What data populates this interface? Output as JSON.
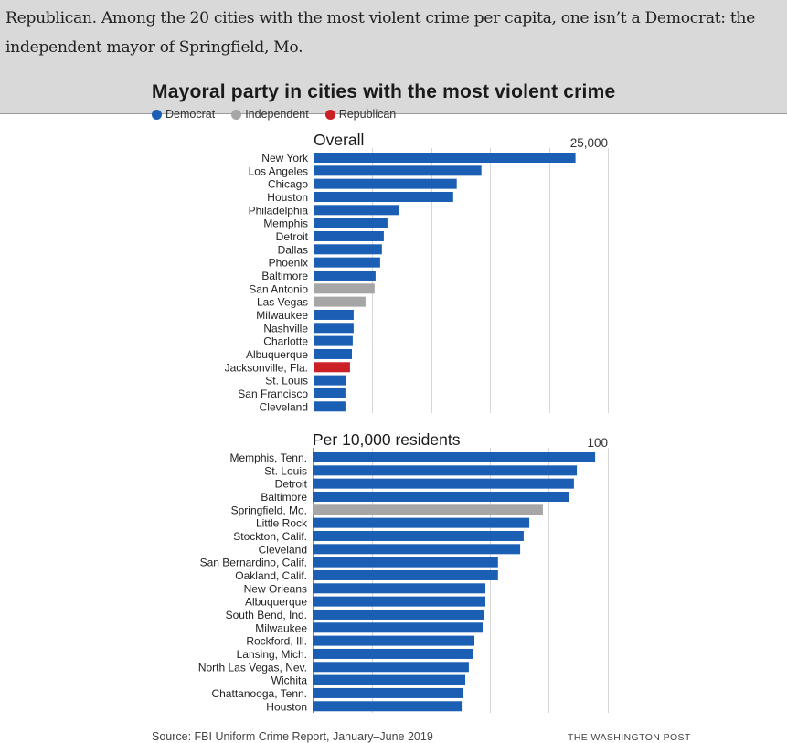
{
  "article": {
    "lines": [
      "Republican. Among the 20 cities with the most violent crime per capita, one isn’t a Democrat: the",
      "independent mayor of Springfield, Mo."
    ]
  },
  "colors": {
    "Democrat": "#1a5fb4",
    "Independent": "#a6a6a6",
    "Republican": "#cc2027",
    "grid": "#d6d6d6",
    "overlay": "#d9d9d9"
  },
  "legend": [
    {
      "label": "Democrat",
      "party": "Democrat"
    },
    {
      "label": "Independent",
      "party": "Independent"
    },
    {
      "label": "Republican",
      "party": "Republican"
    }
  ],
  "footer": {
    "source": "Source: FBI Uniform Crime Report, January–June 2019",
    "credit": "THE WASHINGTON POST"
  },
  "chart_data": [
    {
      "type": "bar",
      "orientation": "horizontal",
      "title": "Mayoral party in cities with the most violent crime",
      "subtitle": "Overall",
      "xlabel": "",
      "ylabel": "",
      "xlim": [
        0,
        25000
      ],
      "grid_step": 5000,
      "max_tick_label": "25,000",
      "grid": true,
      "legend": "top-left",
      "categories": [
        "New York",
        "Los Angeles",
        "Chicago",
        "Houston",
        "Philadelphia",
        "Memphis",
        "Detroit",
        "Dallas",
        "Phoenix",
        "Baltimore",
        "San Antonio",
        "Las Vegas",
        "Milwaukee",
        "Nashville",
        "Charlotte",
        "Albuquerque",
        "Jacksonville, Fla.",
        "St. Louis",
        "San Francisco",
        "Cleveland"
      ],
      "values": [
        22250,
        14260,
        12170,
        11860,
        7290,
        6280,
        5970,
        5810,
        5660,
        5270,
        5190,
        4420,
        3410,
        3410,
        3330,
        3260,
        3100,
        2790,
        2710,
        2710
      ],
      "party": [
        "Democrat",
        "Democrat",
        "Democrat",
        "Democrat",
        "Democrat",
        "Democrat",
        "Democrat",
        "Democrat",
        "Democrat",
        "Democrat",
        "Independent",
        "Independent",
        "Democrat",
        "Democrat",
        "Democrat",
        "Democrat",
        "Republican",
        "Democrat",
        "Democrat",
        "Democrat"
      ]
    },
    {
      "type": "bar",
      "orientation": "horizontal",
      "title": "Mayoral party in cities with the most violent crime",
      "subtitle": "Per 10,000 residents",
      "xlabel": "",
      "ylabel": "",
      "xlim": [
        0,
        100
      ],
      "grid_step": 20,
      "max_tick_label": "100",
      "grid": true,
      "legend": "top-left",
      "categories": [
        "Memphis, Tenn.",
        "St. Louis",
        "Detroit",
        "Baltimore",
        "Springfield, Mo.",
        "Little Rock",
        "Stockton, Calif.",
        "Cleveland",
        "San Bernardino, Calif.",
        "Oakland, Calif.",
        "New Orleans",
        "Albuquerque",
        "South Bend, Ind.",
        "Milwaukee",
        "Rockford, Ill.",
        "Lansing, Mich.",
        "North Las Vegas, Nev.",
        "Wichita",
        "Chattanooga, Tenn.",
        "Houston"
      ],
      "values": [
        95.7,
        89.5,
        88.5,
        86.7,
        78.0,
        73.4,
        71.5,
        70.3,
        62.8,
        62.8,
        58.5,
        58.5,
        58.2,
        57.6,
        54.8,
        54.5,
        52.9,
        51.7,
        50.8,
        50.5
      ],
      "party": [
        "Democrat",
        "Democrat",
        "Democrat",
        "Democrat",
        "Independent",
        "Democrat",
        "Democrat",
        "Democrat",
        "Democrat",
        "Democrat",
        "Democrat",
        "Democrat",
        "Democrat",
        "Democrat",
        "Democrat",
        "Democrat",
        "Democrat",
        "Democrat",
        "Democrat",
        "Democrat"
      ]
    }
  ]
}
